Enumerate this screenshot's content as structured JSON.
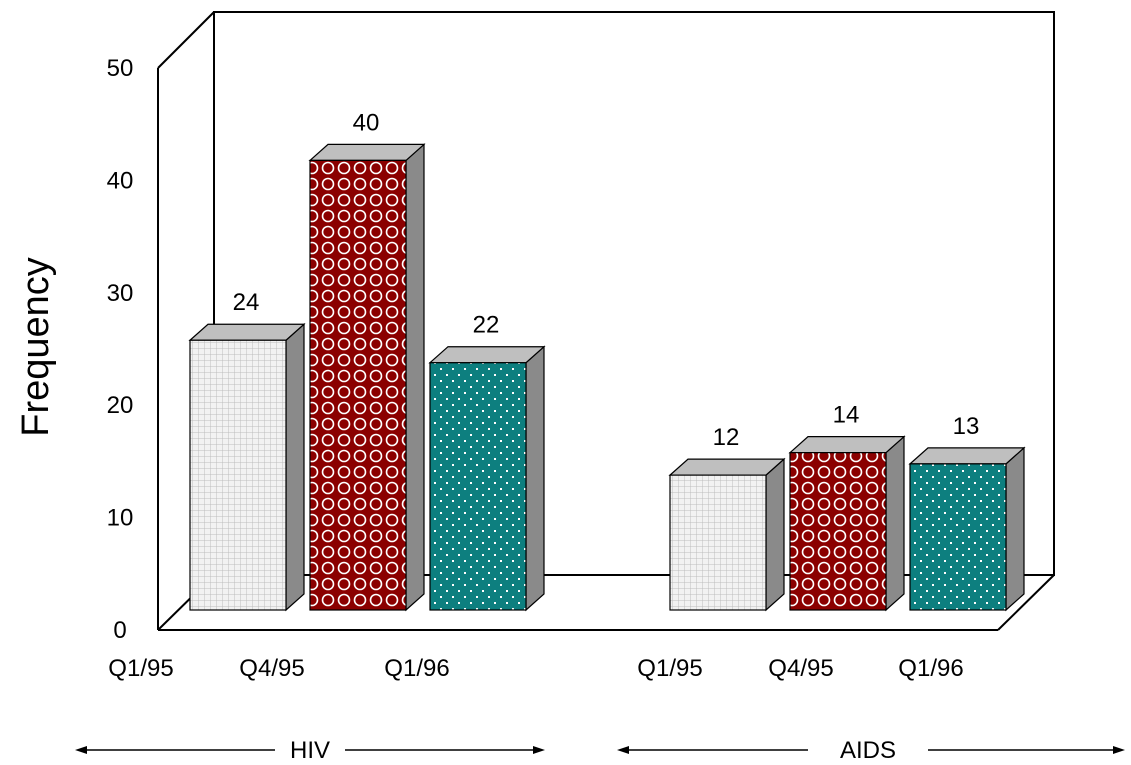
{
  "chart_data": {
    "type": "bar",
    "title": "",
    "xlabel": "",
    "ylabel": "Frequency",
    "ylim": [
      0,
      50
    ],
    "yticks": [
      0,
      10,
      20,
      30,
      40,
      50
    ],
    "grid": false,
    "legend": "none",
    "groups": [
      {
        "name": "HIV",
        "bars": [
          {
            "category": "Q1/95",
            "value": 24,
            "label": "24"
          },
          {
            "category": "Q4/95",
            "value": 40,
            "label": "40"
          },
          {
            "category": "Q1/96",
            "value": 22,
            "label": "22"
          }
        ]
      },
      {
        "name": "AIDS",
        "bars": [
          {
            "category": "Q1/95",
            "value": 12,
            "label": "12"
          },
          {
            "category": "Q4/95",
            "value": 14,
            "label": "14"
          },
          {
            "category": "Q1/96",
            "value": 13,
            "label": "13"
          }
        ]
      }
    ],
    "colors": {
      "Q1/95": "#e8e8e8",
      "Q4/95": "#8b0000",
      "Q1/96": "#0d7f7f"
    },
    "patterns": {
      "Q1/95": "grid",
      "Q4/95": "circles",
      "Q1/96": "dots"
    }
  }
}
